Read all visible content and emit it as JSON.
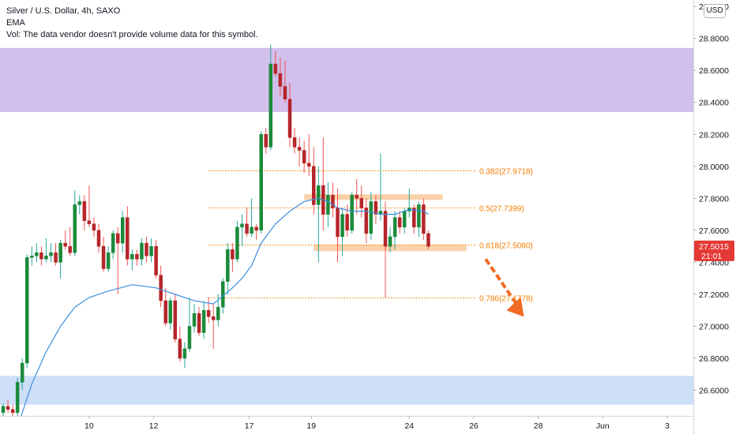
{
  "header": {
    "symbol_line": "Silver / U.S. Dollar, 4h, SAXO",
    "indicator_line": "EMA",
    "volume_note": "Vol: The data vendor doesn't provide volume data for this symbol."
  },
  "currency_button": "USD",
  "colors": {
    "up": "#26a69a",
    "down": "#ef5350",
    "candle_body_up": "#1b8a3a",
    "candle_body_down": "#b5252a",
    "ema": "#3d8fe0",
    "fib": "#f57c00",
    "supply_zone": "#cdb8ea",
    "demand_zone": "#c9dcf7",
    "level_band": "#f9c99a",
    "price_tag": "#e53935"
  },
  "price_tag": {
    "price": "27.5015",
    "countdown": "21:01"
  },
  "chart_data": {
    "type": "candlestick",
    "title": "Silver / U.S. Dollar, 4h, SAXO",
    "x_tick_labels": [
      "10",
      "12",
      "17",
      "19",
      "24",
      "26",
      "28",
      "Jun",
      "3"
    ],
    "y_tick_labels": [
      "26.6000",
      "26.8000",
      "27.0000",
      "27.2000",
      "27.4000",
      "27.6000",
      "27.8000",
      "28.0000",
      "28.2000",
      "28.4000",
      "28.6000",
      "28.8000",
      "29.0000"
    ],
    "ylim": [
      26.44,
      29.04
    ],
    "grid": false,
    "candles": [
      [
        26.46,
        26.52,
        26.44,
        26.5
      ],
      [
        26.5,
        26.54,
        26.46,
        26.48
      ],
      [
        26.48,
        26.51,
        26.44,
        26.46
      ],
      [
        26.46,
        26.68,
        26.44,
        26.65
      ],
      [
        26.65,
        26.8,
        26.6,
        26.77
      ],
      [
        26.77,
        27.45,
        26.74,
        27.43
      ],
      [
        27.43,
        27.5,
        27.38,
        27.44
      ],
      [
        27.44,
        27.52,
        27.4,
        27.46
      ],
      [
        27.46,
        27.5,
        27.38,
        27.42
      ],
      [
        27.42,
        27.55,
        27.4,
        27.44
      ],
      [
        27.44,
        27.52,
        27.4,
        27.46
      ],
      [
        27.46,
        27.52,
        27.38,
        27.4
      ],
      [
        27.4,
        27.54,
        27.3,
        27.52
      ],
      [
        27.52,
        27.6,
        27.48,
        27.5
      ],
      [
        27.5,
        27.62,
        27.44,
        27.46
      ],
      [
        27.46,
        27.85,
        27.44,
        27.76
      ],
      [
        27.76,
        27.82,
        27.7,
        27.78
      ],
      [
        27.78,
        27.82,
        27.6,
        27.66
      ],
      [
        27.66,
        27.88,
        27.62,
        27.64
      ],
      [
        27.64,
        27.68,
        27.56,
        27.6
      ],
      [
        27.6,
        27.64,
        27.46,
        27.5
      ],
      [
        27.5,
        27.56,
        27.34,
        27.36
      ],
      [
        27.36,
        27.5,
        27.34,
        27.46
      ],
      [
        27.46,
        27.6,
        27.42,
        27.58
      ],
      [
        27.58,
        27.62,
        27.2,
        27.52
      ],
      [
        27.52,
        27.72,
        27.46,
        27.68
      ],
      [
        27.68,
        27.75,
        27.38,
        27.42
      ],
      [
        27.42,
        27.48,
        27.35,
        27.45
      ],
      [
        27.45,
        27.48,
        27.38,
        27.42
      ],
      [
        27.42,
        27.55,
        27.38,
        27.52
      ],
      [
        27.52,
        27.56,
        27.4,
        27.44
      ],
      [
        27.44,
        27.55,
        27.4,
        27.5
      ],
      [
        27.5,
        27.54,
        27.3,
        27.32
      ],
      [
        27.32,
        27.38,
        27.12,
        27.16
      ],
      [
        27.16,
        27.24,
        27.0,
        27.02
      ],
      [
        27.02,
        27.18,
        26.98,
        27.16
      ],
      [
        27.16,
        27.2,
        26.9,
        26.92
      ],
      [
        26.92,
        27.0,
        26.78,
        26.8
      ],
      [
        26.8,
        26.9,
        26.74,
        26.86
      ],
      [
        26.86,
        27.18,
        26.84,
        27.0
      ],
      [
        27.0,
        27.14,
        26.96,
        27.08
      ],
      [
        27.08,
        27.12,
        26.94,
        26.96
      ],
      [
        26.96,
        27.16,
        26.92,
        27.1
      ],
      [
        27.1,
        27.18,
        27.02,
        27.06
      ],
      [
        27.06,
        27.14,
        26.86,
        27.04
      ],
      [
        27.04,
        27.2,
        27.0,
        27.12
      ],
      [
        27.12,
        27.3,
        27.08,
        27.28
      ],
      [
        27.28,
        27.52,
        27.2,
        27.48
      ],
      [
        27.48,
        27.52,
        27.34,
        27.42
      ],
      [
        27.42,
        27.66,
        27.4,
        27.62
      ],
      [
        27.62,
        27.7,
        27.5,
        27.64
      ],
      [
        27.64,
        27.74,
        27.56,
        27.58
      ],
      [
        27.58,
        27.8,
        27.56,
        27.62
      ],
      [
        27.62,
        27.64,
        27.54,
        27.6
      ],
      [
        27.6,
        28.22,
        27.58,
        28.2
      ],
      [
        28.2,
        28.24,
        28.08,
        28.12
      ],
      [
        28.12,
        28.76,
        28.1,
        28.64
      ],
      [
        28.64,
        28.72,
        28.56,
        28.58
      ],
      [
        28.58,
        28.68,
        28.44,
        28.5
      ],
      [
        28.5,
        28.66,
        28.4,
        28.42
      ],
      [
        28.42,
        28.52,
        28.12,
        28.18
      ],
      [
        28.18,
        28.24,
        28.08,
        28.12
      ],
      [
        28.12,
        28.18,
        28.0,
        28.1
      ],
      [
        28.1,
        28.16,
        27.96,
        28.02
      ],
      [
        28.02,
        28.2,
        27.94,
        28.0
      ],
      [
        28.0,
        28.12,
        27.7,
        27.76
      ],
      [
        27.76,
        28.0,
        27.4,
        27.88
      ],
      [
        27.88,
        28.18,
        27.6,
        27.7
      ],
      [
        27.7,
        27.9,
        27.62,
        27.82
      ],
      [
        27.82,
        27.9,
        27.68,
        27.74
      ],
      [
        27.74,
        27.86,
        27.4,
        27.56
      ],
      [
        27.56,
        27.74,
        27.44,
        27.7
      ],
      [
        27.7,
        27.76,
        27.56,
        27.6
      ],
      [
        27.6,
        27.84,
        27.58,
        27.82
      ],
      [
        27.82,
        27.92,
        27.7,
        27.8
      ],
      [
        27.8,
        27.88,
        27.68,
        27.74
      ],
      [
        27.74,
        27.8,
        27.52,
        27.58
      ],
      [
        27.58,
        27.84,
        27.54,
        27.78
      ],
      [
        27.78,
        27.82,
        27.64,
        27.7
      ],
      [
        27.7,
        28.08,
        27.66,
        27.72
      ],
      [
        27.72,
        27.78,
        27.18,
        27.5
      ],
      [
        27.5,
        27.62,
        27.46,
        27.56
      ],
      [
        27.56,
        27.72,
        27.48,
        27.68
      ],
      [
        27.68,
        27.72,
        27.58,
        27.62
      ],
      [
        27.62,
        27.74,
        27.58,
        27.72
      ],
      [
        27.72,
        27.86,
        27.68,
        27.74
      ],
      [
        27.74,
        27.76,
        27.58,
        27.62
      ],
      [
        27.62,
        27.78,
        27.56,
        27.76
      ],
      [
        27.76,
        27.8,
        27.54,
        27.58
      ],
      [
        27.58,
        27.6,
        27.48,
        27.5
      ]
    ],
    "ema": {
      "name": "EMA",
      "points": [
        [
          0,
          26.2
        ],
        [
          2,
          26.3
        ],
        [
          4,
          26.46
        ],
        [
          6,
          26.64
        ],
        [
          9,
          26.84
        ],
        [
          12,
          27.0
        ],
        [
          15,
          27.12
        ],
        [
          18,
          27.18
        ],
        [
          22,
          27.22
        ],
        [
          27,
          27.26
        ],
        [
          32,
          27.24
        ],
        [
          36,
          27.2
        ],
        [
          40,
          27.16
        ],
        [
          44,
          27.14
        ],
        [
          48,
          27.24
        ],
        [
          50,
          27.3
        ],
        [
          52,
          27.38
        ],
        [
          54,
          27.52
        ],
        [
          57,
          27.64
        ],
        [
          60,
          27.72
        ],
        [
          63,
          27.78
        ],
        [
          66,
          27.8
        ],
        [
          68,
          27.78
        ],
        [
          70,
          27.74
        ],
        [
          73,
          27.72
        ],
        [
          76,
          27.72
        ],
        [
          79,
          27.7
        ],
        [
          82,
          27.7
        ],
        [
          85,
          27.73
        ],
        [
          88,
          27.72
        ],
        [
          89,
          27.7
        ]
      ]
    },
    "zones": [
      {
        "name": "supply-zone",
        "y": [
          28.34,
          28.74
        ]
      },
      {
        "name": "demand-zone",
        "y": [
          26.51,
          26.69
        ]
      }
    ],
    "bands": [
      {
        "name": "upper-level-band",
        "x": [
          63,
          92
        ],
        "y": [
          27.79,
          27.825
        ]
      },
      {
        "name": "lower-level-band",
        "x": [
          65,
          97
        ],
        "y": [
          27.47,
          27.51
        ]
      }
    ],
    "fib_levels": [
      {
        "ratio": "0.382",
        "price": 27.9718,
        "label": "0.382(27.9718)"
      },
      {
        "ratio": "0.5",
        "price": 27.7399,
        "label": "0.5(27.7399)"
      },
      {
        "ratio": "0.618",
        "price": 27.508,
        "label": "0.618(27.5080)"
      },
      {
        "ratio": "0.786",
        "price": 27.1778,
        "label": "0.786(27.1778)"
      }
    ],
    "fib_x_range": [
      43,
      99
    ],
    "arrow": {
      "from": [
        101,
        27.42
      ],
      "to": [
        109,
        27.06
      ]
    }
  }
}
